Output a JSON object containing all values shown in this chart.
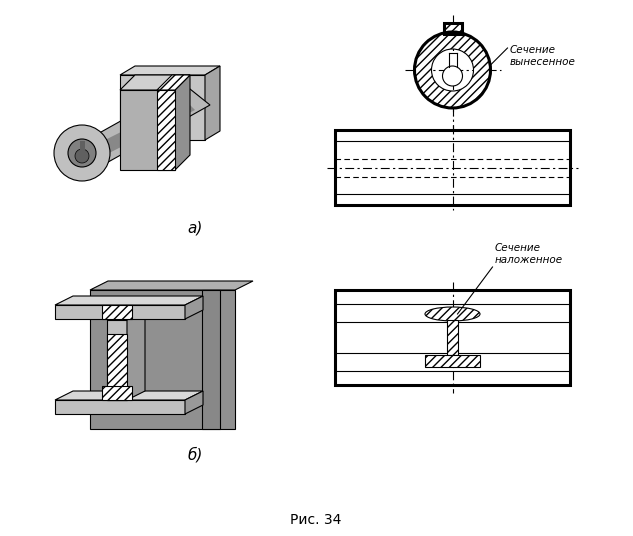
{
  "bg_color": "#ffffff",
  "fig_width": 6.33,
  "fig_height": 5.36,
  "title": "Рис. 34",
  "label_a": "а)",
  "label_b": "б)",
  "text_a": "Сечение\nвынесенное",
  "text_b": "Сечение\nналоженное",
  "hatch_pattern": "////",
  "line_color": "#000000",
  "gray_light": "#cccccc",
  "gray_mid": "#999999",
  "gray_dark": "#666666"
}
